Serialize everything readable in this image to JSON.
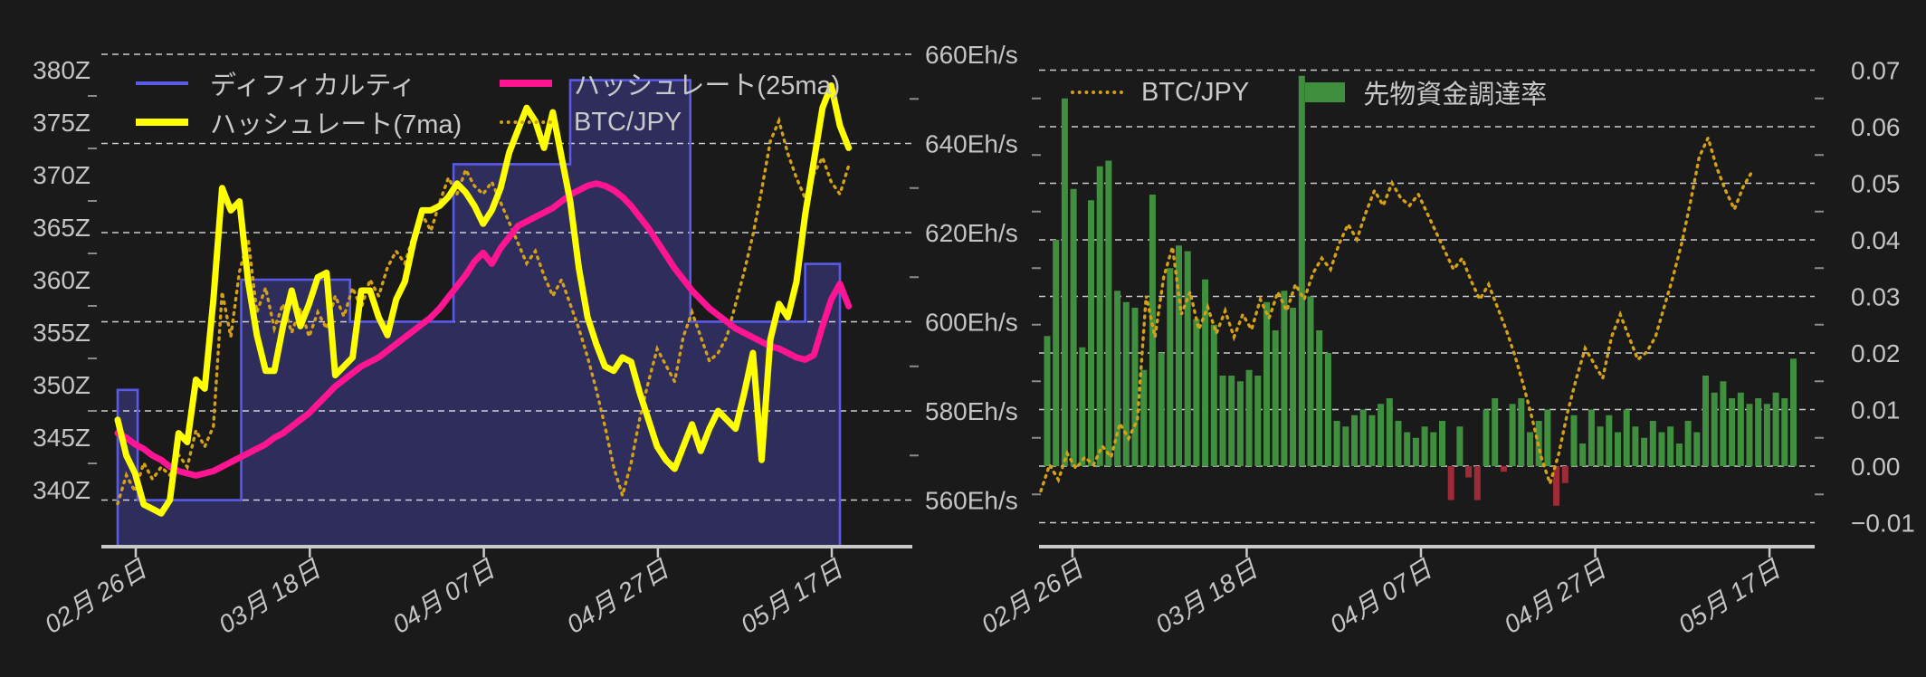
{
  "page": {
    "background": "#1a1a1a",
    "grid_color": "rgba(255,255,255,0.78)",
    "axis_color": "#c9c9c9",
    "tick_label_color": "#c4c4c4"
  },
  "chart_data": [
    {
      "type": "line",
      "title": "",
      "description": "Bitcoin difficulty (step area), hashrate 7-day and 25-day moving averages, and BTC/JPY price overlay",
      "grid": "horizontal-dashed",
      "legend_position": "top-left-inside",
      "x_tick_labels": [
        "02月 26日",
        "03月 18日",
        "04月 07日",
        "04月 27日",
        "05月 17日"
      ],
      "x_tick_days": [
        2.08,
        22.08,
        42.08,
        62.08,
        82.06
      ],
      "y_left_axis": {
        "unit": "Z",
        "ticks": [
          380,
          375,
          370,
          365,
          360,
          355,
          350,
          345,
          340
        ],
        "suffix": "Z"
      },
      "y_right_axis": {
        "unit": "Eh/s",
        "ticks": [
          660,
          640,
          620,
          600,
          580,
          560
        ],
        "suffix": "Eh/s"
      },
      "legend": [
        {
          "label": "ディフィカルティ",
          "color": "#5a5ae8",
          "style": "line-thin"
        },
        {
          "label": "ハッシュレート(25ma)",
          "color": "#ff1493",
          "style": "line-thick"
        },
        {
          "label": "ハッシュレート(7ma)",
          "color": "#ffff00",
          "style": "line-thick"
        },
        {
          "label": "BTC/JPY",
          "color": "#d4a017",
          "style": "line-dotted"
        }
      ],
      "series": {
        "difficulty": {
          "name": "ディフィカルティ",
          "unit": "Z",
          "color": "#5a5ae8",
          "fill": "#2e2d5c",
          "steps_day_value": [
            [
              0,
              349.5
            ],
            [
              2.3,
              339
            ],
            [
              14.2,
              360
            ],
            [
              26.7,
              356
            ],
            [
              38.6,
              371
            ],
            [
              52,
              379
            ],
            [
              65.8,
              356
            ],
            [
              79,
              361.5
            ]
          ],
          "end_day": 83
        },
        "hashrate_7ma": {
          "name": "ハッシュレート(7ma)",
          "unit": "Eh/s",
          "color": "#ffff00",
          "values": [
            578,
            570,
            566,
            559,
            558,
            557,
            560,
            575,
            573,
            587,
            585,
            605,
            630,
            625,
            627,
            609,
            597,
            589,
            589,
            599,
            607,
            599,
            604,
            610,
            611,
            588,
            590,
            592,
            607,
            607,
            601,
            597,
            605,
            609,
            618,
            625,
            625,
            626,
            628,
            631,
            629,
            626,
            622,
            625,
            630,
            638,
            643,
            648,
            645,
            639,
            647,
            637,
            627,
            612,
            601,
            595,
            590,
            589,
            592,
            591,
            584,
            578,
            572,
            569,
            567,
            572,
            577,
            571,
            576,
            580,
            578,
            576,
            584,
            593,
            569,
            596,
            604,
            601,
            609,
            624,
            636,
            648,
            653,
            644,
            639
          ]
        },
        "hashrate_25ma": {
          "name": "ハッシュレート(25ma)",
          "unit": "Eh/s",
          "color": "#ff1493",
          "values": [
            575,
            574,
            572.5,
            571.5,
            570,
            569,
            567.5,
            566.5,
            566,
            565.5,
            566,
            566.5,
            567.5,
            568.5,
            569.5,
            570.5,
            571.5,
            572.5,
            574,
            575,
            576.5,
            578,
            579.5,
            581.5,
            583.5,
            585.5,
            587,
            588.5,
            590,
            591,
            592,
            593.5,
            595,
            596.5,
            598,
            599.5,
            601,
            603,
            605.5,
            608,
            610.5,
            613.5,
            615.5,
            613,
            616.5,
            619,
            621.5,
            622.5,
            623.5,
            624.5,
            625.5,
            627,
            628.5,
            629.5,
            630.5,
            631,
            630.5,
            629.5,
            628,
            626,
            623.5,
            621,
            618,
            615,
            612,
            609.5,
            607,
            605,
            603,
            601.5,
            600,
            598.5,
            597.5,
            596.5,
            595.5,
            594.5,
            594,
            593,
            592,
            591.5,
            592.5,
            599,
            605,
            608.5,
            603.5
          ]
        },
        "btc_jpy": {
          "name": "BTC/JPY",
          "normalized": true,
          "color": "#d4a017",
          "values": [
            0.03,
            0.1,
            0.06,
            0.13,
            0.09,
            0.12,
            0.1,
            0.15,
            0.12,
            0.21,
            0.17,
            0.22,
            0.55,
            0.44,
            0.6,
            0.68,
            0.5,
            0.56,
            0.46,
            0.52,
            0.45,
            0.51,
            0.44,
            0.5,
            0.46,
            0.54,
            0.49,
            0.56,
            0.51,
            0.58,
            0.54,
            0.61,
            0.65,
            0.62,
            0.69,
            0.74,
            0.7,
            0.77,
            0.83,
            0.79,
            0.85,
            0.81,
            0.79,
            0.82,
            0.77,
            0.72,
            0.67,
            0.62,
            0.65,
            0.59,
            0.54,
            0.58,
            0.52,
            0.46,
            0.39,
            0.31,
            0.22,
            0.12,
            0.05,
            0.13,
            0.24,
            0.33,
            0.41,
            0.37,
            0.33,
            0.44,
            0.5,
            0.44,
            0.38,
            0.4,
            0.44,
            0.52,
            0.6,
            0.69,
            0.8,
            0.92,
            0.97,
            0.89,
            0.83,
            0.78,
            0.84,
            0.88,
            0.82,
            0.79,
            0.86
          ]
        }
      }
    },
    {
      "type": "bar",
      "title": "",
      "description": "BTC/JPY price (dotted line) and futures funding rate (bars)",
      "grid": "horizontal-dashed",
      "legend_position": "top-inside",
      "x_tick_labels": [
        "02月 26日",
        "03月 18日",
        "04月 07日",
        "04月 27日",
        "05月 17日"
      ],
      "x_tick_days": [
        3.6,
        23.45,
        43.3,
        63.15,
        83.0
      ],
      "y_right_axis": {
        "unit": "",
        "ticks": [
          0.07,
          0.06,
          0.05,
          0.04,
          0.03,
          0.02,
          0.01,
          0.0,
          -0.01
        ]
      },
      "legend": [
        {
          "label": "BTC/JPY",
          "color": "#d4a017",
          "style": "line-dotted"
        },
        {
          "label": "先物資金調達率",
          "color": "#3f8f3f",
          "style": "rect"
        }
      ],
      "series": {
        "funding_rate": {
          "name": "先物資金調達率",
          "color_positive": "#3f8f3f",
          "color_negative": "#9e2b38",
          "values": [
            0.023,
            0.04,
            0.065,
            0.049,
            0.021,
            0.047,
            0.053,
            0.054,
            0.031,
            0.029,
            0.028,
            0.017,
            0.048,
            0.02,
            0.035,
            0.039,
            0.038,
            0.026,
            0.033,
            0.025,
            0.016,
            0.016,
            0.015,
            0.017,
            0.016,
            0.029,
            0.024,
            0.031,
            0.028,
            0.069,
            0.03,
            0.024,
            0.02,
            0.008,
            0.007,
            0.009,
            0.01,
            0.009,
            0.011,
            0.012,
            0.008,
            0.006,
            0.005,
            0.007,
            0.006,
            0.008,
            -0.006,
            0.007,
            -0.002,
            -0.006,
            0.01,
            0.012,
            -0.001,
            0.011,
            0.012,
            0.006,
            0.008,
            0.01,
            -0.007,
            -0.003,
            0.009,
            0.004,
            0.01,
            0.007,
            0.009,
            0.006,
            0.01,
            0.007,
            0.005,
            0.008,
            0.006,
            0.007,
            0.004,
            0.008,
            0.006,
            0.016,
            0.013,
            0.015,
            0.012,
            0.013,
            0.011,
            0.012,
            0.011,
            0.013,
            0.012,
            0.019
          ]
        },
        "btc_jpy": {
          "name": "BTC/JPY",
          "normalized": true,
          "color": "#d4a017",
          "values_ref": "chart_data.0.series.btc_jpy.values"
        }
      }
    }
  ]
}
